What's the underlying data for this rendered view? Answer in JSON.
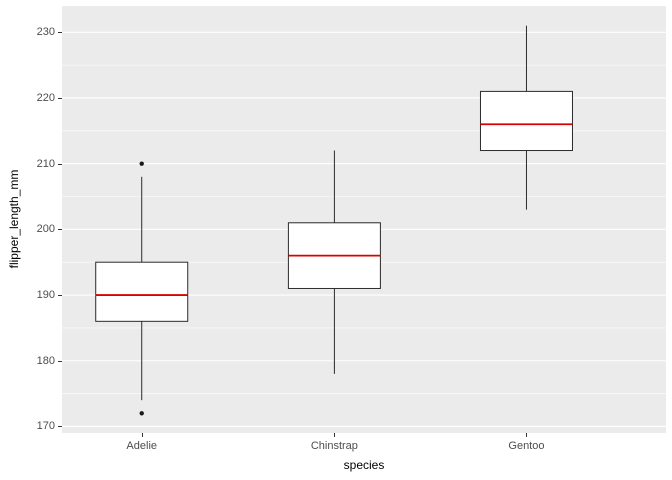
{
  "figure": {
    "background": "#FFFFFF",
    "panel_background": "#EBEBEB",
    "grid_color": "#FFFFFF",
    "box_fill": "#FFFFFF",
    "box_stroke": "#2B2B2B",
    "median_color": "#DD0000",
    "outlier_color": "#1A1A1A",
    "tick_text_color": "#4D4D4D",
    "title_text_color": "#000000"
  },
  "chart_data": {
    "type": "boxplot",
    "title": "",
    "xlabel": "species",
    "ylabel": "flipper_length_mm",
    "categories": [
      "Adelie",
      "Chinstrap",
      "Gentoo"
    ],
    "y_ticks": [
      170,
      180,
      190,
      200,
      210,
      220,
      230
    ],
    "ylim": [
      169,
      234
    ],
    "grid": true,
    "legend": "none",
    "series": [
      {
        "name": "Adelie",
        "q1": 186,
        "median": 190,
        "q3": 195,
        "whisker_low": 174,
        "whisker_high": 208,
        "outliers": [
          172,
          210
        ]
      },
      {
        "name": "Chinstrap",
        "q1": 191,
        "median": 196,
        "q3": 201,
        "whisker_low": 178,
        "whisker_high": 212,
        "outliers": []
      },
      {
        "name": "Gentoo",
        "q1": 212,
        "median": 216,
        "q3": 221,
        "whisker_low": 203,
        "whisker_high": 231,
        "outliers": []
      }
    ]
  }
}
